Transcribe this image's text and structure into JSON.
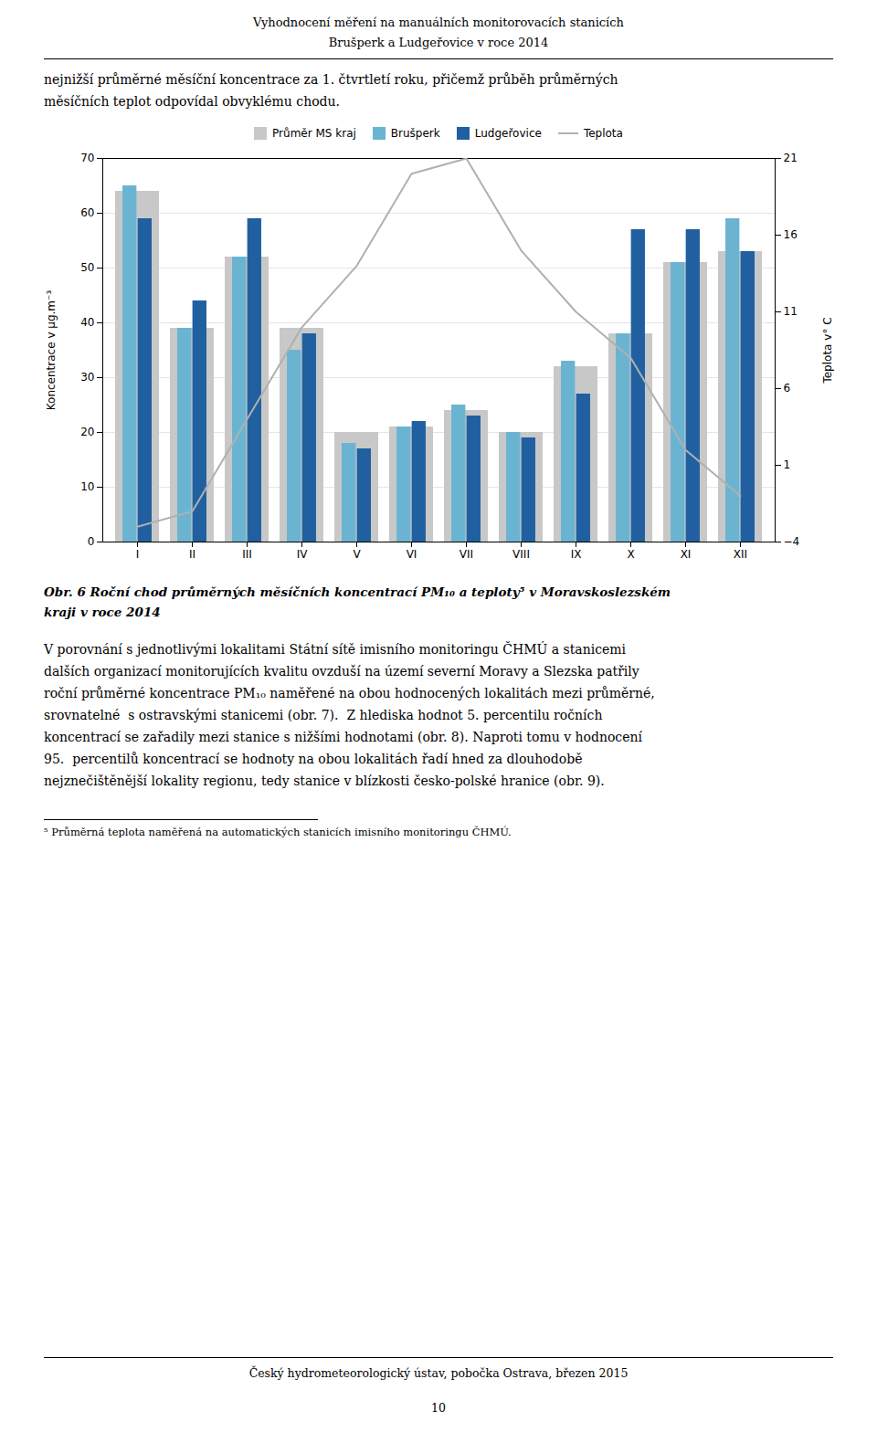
{
  "chart_data": {
    "type": "bar",
    "title": "Obr. 6 Roční chod průměrných měsíčních koncentrací PM₁₀ a teploty⁵ v Moravskoslezském kraji v roce 2014",
    "categories": [
      "I",
      "II",
      "III",
      "IV",
      "V",
      "VI",
      "VII",
      "VIII",
      "IX",
      "X",
      "XI",
      "XII"
    ],
    "series": [
      {
        "name": "Průměr MS kraj",
        "color": "#c8c8c8",
        "values": [
          64,
          39,
          52,
          39,
          20,
          21,
          24,
          20,
          32,
          38,
          51,
          53
        ]
      },
      {
        "name": "Brušperk",
        "color": "#6ab4d2",
        "values": [
          65,
          39,
          52,
          35,
          18,
          21,
          25,
          20,
          33,
          38,
          51,
          59
        ]
      },
      {
        "name": "Ludgeřovice",
        "color": "#2060a0",
        "values": [
          59,
          44,
          59,
          38,
          17,
          22,
          23,
          19,
          27,
          57,
          57,
          53
        ]
      },
      {
        "name": "Teplota",
        "type": "line",
        "axis": "y2",
        "color": "#b0b0b0",
        "values": [
          -3,
          -2,
          4,
          10,
          14,
          20,
          21,
          15,
          11,
          8,
          2,
          -1
        ]
      }
    ],
    "ylabel": "Koncentrace v μg.m⁻³",
    "y2label": "Teplota v° C",
    "ylim": [
      0,
      70
    ],
    "yticks": [
      0,
      10,
      20,
      30,
      40,
      50,
      60,
      70
    ],
    "y2lim": [
      -4,
      21
    ],
    "y2ticks": [
      -4,
      1,
      6,
      11,
      16,
      21
    ],
    "grid": true,
    "legend": "upper center",
    "annotations": [
      "Vyhodnocení měření na manuálních monitorovacích stanicích",
      "Brušperk a Ludgeřovice v roce 2014",
      "nejnižší průměrné měsíční koncentrace za 1. čtvrtletí roku, přičemž průběh průměrných",
      "měsíčních teplot odpovídal obvyklému chodu.",
      "V porovnání s jednotlivými lokalitami Státní sítě imisního monitoringu ČHMÚ a stanicemi",
      "dalších organizací monitorujících kvalitu ovzduší na území severní Moravy a Slezska patřily",
      "roční průměrné koncentrace PM₁₀ naměřené na obou hodnocených lokalitách mezi průměrné,",
      "srovnatelné  s ostravskými stanicemi (obr. 7).  Z hlediska hodnot 5. percentilu ročních",
      "koncentrací se zařadily mezi stanice s nižšími hodnotami (obr. 8). Naproti tomu v hodnocení",
      "95.  percentilů koncentrací se hodnoty na obou lokalitách řadí hned za dlouhodobě",
      "nejznečištěnější lokality regionu, tedy stanice v blízkosti česko-polské hranice (obr. 9).",
      "⁵ Průměrná teplota naměřená na automatických stanicích imisního monitoringu ČHMÚ.",
      "Český hydrometeorologický ústav, pobočka Ostrava, březen 2015",
      "10"
    ]
  }
}
